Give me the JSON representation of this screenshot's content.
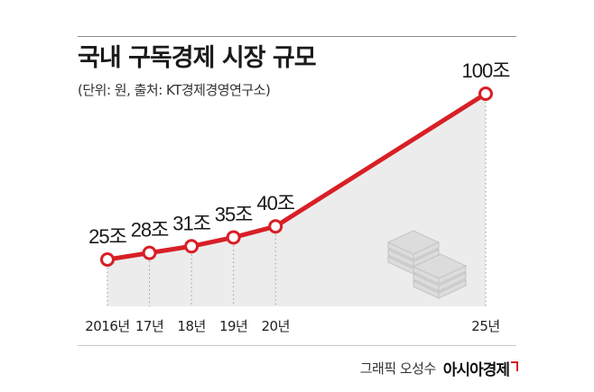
{
  "header": {
    "title": "국내 구독경제 시장 규모",
    "subtitle": "(단위: 원, 출처: KT경제경영연구소)"
  },
  "footer": {
    "credit": "그래픽 오성수",
    "brand": "아시아경제"
  },
  "chart_data": {
    "type": "line",
    "title": "국내 구독경제 시장 규모",
    "subtitle": "(단위: 원, 출처: KT경제경영연구소)",
    "x": [
      "2016년",
      "17년",
      "18년",
      "19년",
      "20년",
      "25년"
    ],
    "x_numeric": [
      2016,
      2017,
      2018,
      2019,
      2020,
      2025
    ],
    "series": [
      {
        "values": [
          25,
          28,
          31,
          35,
          40,
          100
        ],
        "labels": [
          "25조",
          "28조",
          "31조",
          "35조",
          "40조",
          "100조"
        ]
      }
    ],
    "ylim": [
      0,
      100
    ],
    "grid": false,
    "area_fill": true,
    "colors": {
      "line": "#d81f26",
      "marker_fill": "#ffffff",
      "area": "#ececec",
      "guide": "#9a9a9a"
    },
    "icon": "money-stack-icon"
  }
}
